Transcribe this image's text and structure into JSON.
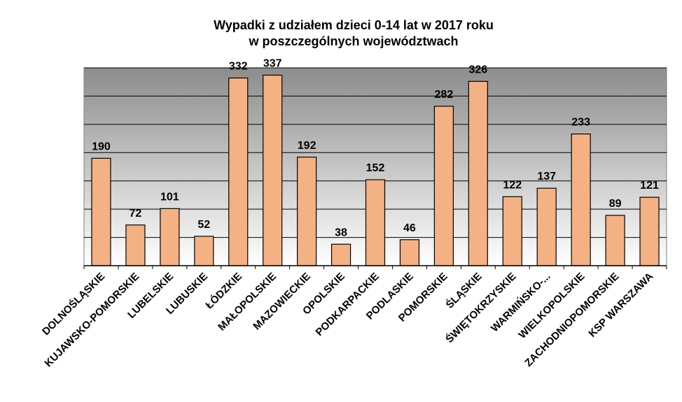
{
  "chart_data": {
    "type": "bar",
    "title": "Wypadki z udziałem dzieci 0-14 lat w 2017 roku",
    "subtitle": "w poszczególnych województwach",
    "xlabel": "",
    "ylabel": "",
    "ylim": [
      0,
      350
    ],
    "grid": true,
    "gridlines_at": [
      0,
      50,
      100,
      150,
      200,
      250,
      300,
      350
    ],
    "legend": "none",
    "categories": [
      "DOLNOŚLĄSKIE",
      "KUJAWSKO-POMORSKIE",
      "LUBELSKIE",
      "LUBUSKIE",
      "ŁÓDZKIE",
      "MAŁOPOLSKIE",
      "MAZOWIECKIE",
      "OPOLSKIE",
      "PODKARPACKIE",
      "PODLASKIE",
      "POMORSKIE",
      "ŚLĄSKIE",
      "ŚWIĘTOKRZYSKIE",
      "WARMIŃSKO-...",
      "WIELKOPOLSKIE",
      "ZACHODNIOPOMORSKIE",
      "KSP WARSZAWA"
    ],
    "values": [
      190,
      72,
      101,
      52,
      332,
      337,
      192,
      38,
      152,
      46,
      282,
      326,
      122,
      137,
      233,
      89,
      121
    ],
    "data_labels": [
      "190",
      "72",
      "101",
      "52",
      "332",
      "337",
      "192",
      "38",
      "152",
      "46",
      "282",
      "326",
      "122",
      "137",
      "233",
      "89",
      "121"
    ],
    "colors": {
      "bar_fill": "#F4B183",
      "bar_stroke": "#000000",
      "plot_top": "#8C8C8C",
      "plot_bottom": "#FFFFFF",
      "gridline": "#000000"
    }
  }
}
